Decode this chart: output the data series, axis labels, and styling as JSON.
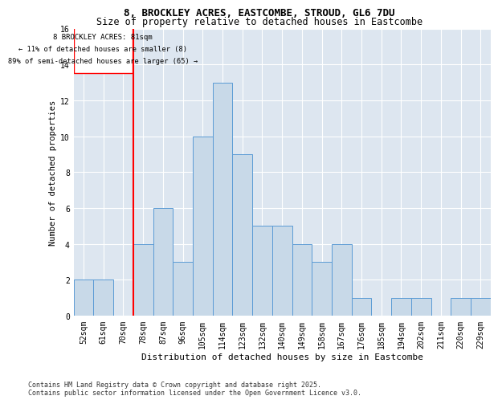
{
  "title1": "8, BROCKLEY ACRES, EASTCOMBE, STROUD, GL6 7DU",
  "title2": "Size of property relative to detached houses in Eastcombe",
  "xlabel": "Distribution of detached houses by size in Eastcombe",
  "ylabel": "Number of detached properties",
  "categories": [
    "52sqm",
    "61sqm",
    "70sqm",
    "78sqm",
    "87sqm",
    "96sqm",
    "105sqm",
    "114sqm",
    "123sqm",
    "132sqm",
    "140sqm",
    "149sqm",
    "158sqm",
    "167sqm",
    "176sqm",
    "185sqm",
    "194sqm",
    "202sqm",
    "211sqm",
    "220sqm",
    "229sqm"
  ],
  "values": [
    2,
    2,
    0,
    4,
    6,
    3,
    10,
    13,
    9,
    5,
    5,
    4,
    3,
    4,
    1,
    0,
    1,
    1,
    0,
    1,
    1
  ],
  "bar_color": "#c8d9e8",
  "bar_edge_color": "#5b9bd5",
  "reference_line_x": 2.5,
  "reference_line_label": "8 BROCKLEY ACRES: 81sqm",
  "annotation_line1": "← 11% of detached houses are smaller (8)",
  "annotation_line2": "89% of semi-detached houses are larger (65) →",
  "ylim": [
    0,
    16
  ],
  "yticks": [
    0,
    2,
    4,
    6,
    8,
    10,
    12,
    14,
    16
  ],
  "footer1": "Contains HM Land Registry data © Crown copyright and database right 2025.",
  "footer2": "Contains public sector information licensed under the Open Government Licence v3.0.",
  "background_color": "#dde6f0",
  "title1_fontsize": 9,
  "title2_fontsize": 8.5,
  "ylabel_fontsize": 7.5,
  "xlabel_fontsize": 8,
  "tick_fontsize": 7,
  "footer_fontsize": 6
}
